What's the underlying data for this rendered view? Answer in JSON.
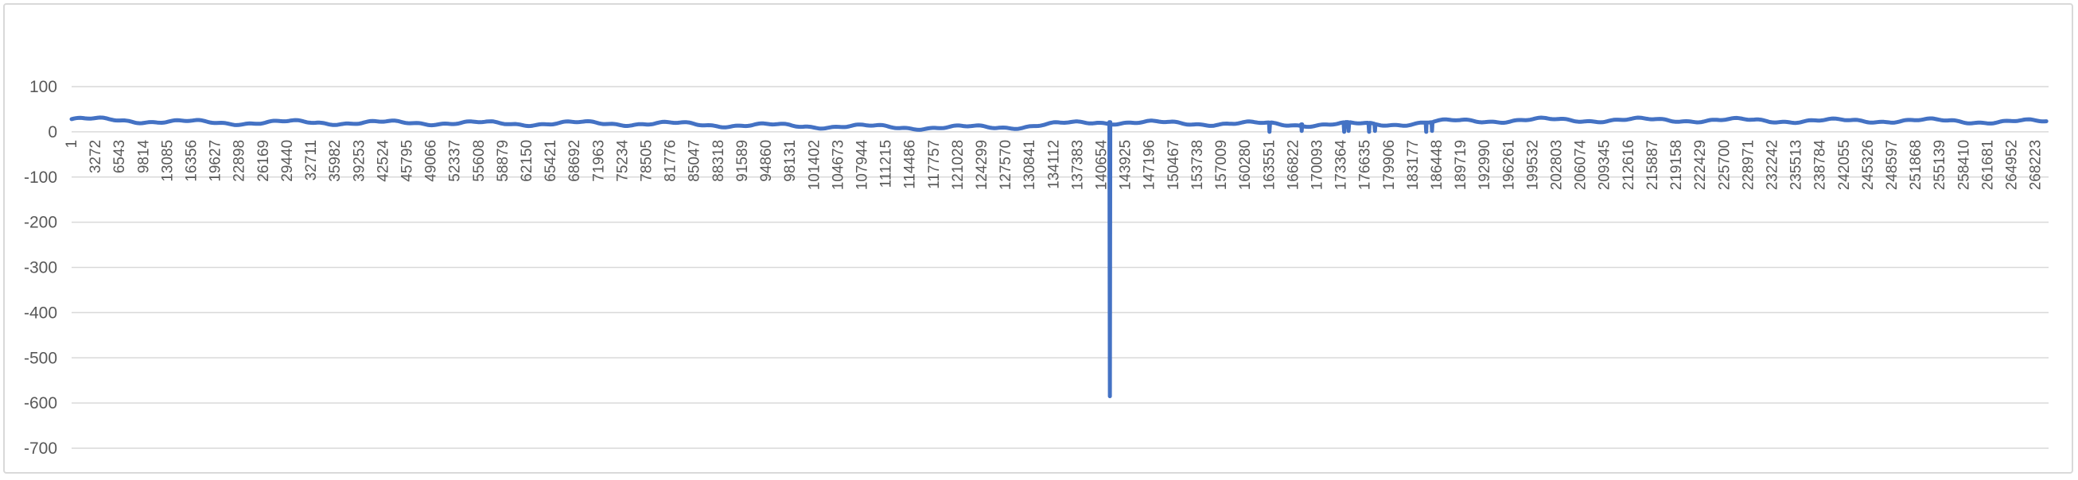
{
  "chart_data": {
    "type": "line",
    "title": "",
    "xlabel": "",
    "ylabel": "",
    "ylim": [
      -700,
      100
    ],
    "yticks": [
      100,
      0,
      -100,
      -200,
      -300,
      -400,
      -500,
      -600,
      -700
    ],
    "grid": true,
    "legend": "none",
    "x_tick_labels": [
      "1",
      "3272",
      "6543",
      "9814",
      "13085",
      "16356",
      "19627",
      "22898",
      "26169",
      "29440",
      "32711",
      "35982",
      "39253",
      "42524",
      "45795",
      "49066",
      "52337",
      "55608",
      "58879",
      "62150",
      "65421",
      "68692",
      "71963",
      "75234",
      "78505",
      "81776",
      "85047",
      "88318",
      "91589",
      "94860",
      "98131",
      "101402",
      "104673",
      "107944",
      "111215",
      "114486",
      "117757",
      "121028",
      "124299",
      "127570",
      "130841",
      "134112",
      "137383",
      "140654",
      "143925",
      "147196",
      "150467",
      "153738",
      "157009",
      "160280",
      "163551",
      "166822",
      "170093",
      "173364",
      "176635",
      "179906",
      "183177",
      "186448",
      "189719",
      "192990",
      "196261",
      "199532",
      "202803",
      "206074",
      "209345",
      "212616",
      "215887",
      "219158",
      "222429",
      "225700",
      "228971",
      "232242",
      "235513",
      "238784",
      "242055",
      "245326",
      "248597",
      "251868",
      "255139",
      "258410",
      "261681",
      "264952",
      "268223"
    ],
    "x_range": [
      1,
      270000
    ],
    "series": [
      {
        "color": "#4472c4",
        "baseline": [
          [
            1,
            28
          ],
          [
            10000,
            24
          ],
          [
            20000,
            20
          ],
          [
            30000,
            21
          ],
          [
            40000,
            20
          ],
          [
            50000,
            20
          ],
          [
            60000,
            18
          ],
          [
            70000,
            19
          ],
          [
            80000,
            18
          ],
          [
            90000,
            15
          ],
          [
            100000,
            13
          ],
          [
            110000,
            11
          ],
          [
            120000,
            9
          ],
          [
            130000,
            12
          ],
          [
            140000,
            22
          ],
          [
            150000,
            19
          ],
          [
            160000,
            18
          ],
          [
            170000,
            16
          ],
          [
            180000,
            17
          ],
          [
            190000,
            24
          ],
          [
            200000,
            26
          ],
          [
            210000,
            26
          ],
          [
            220000,
            26
          ],
          [
            230000,
            25
          ],
          [
            240000,
            24
          ],
          [
            250000,
            25
          ],
          [
            260000,
            23
          ],
          [
            270000,
            22
          ]
        ],
        "spikes": [
          [
            141800,
            -585
          ],
          [
            163600,
            0
          ],
          [
            168000,
            2
          ],
          [
            173800,
            0
          ],
          [
            174400,
            2
          ],
          [
            177200,
            0
          ],
          [
            178000,
            2
          ],
          [
            185000,
            0
          ],
          [
            185800,
            2
          ]
        ]
      }
    ]
  }
}
